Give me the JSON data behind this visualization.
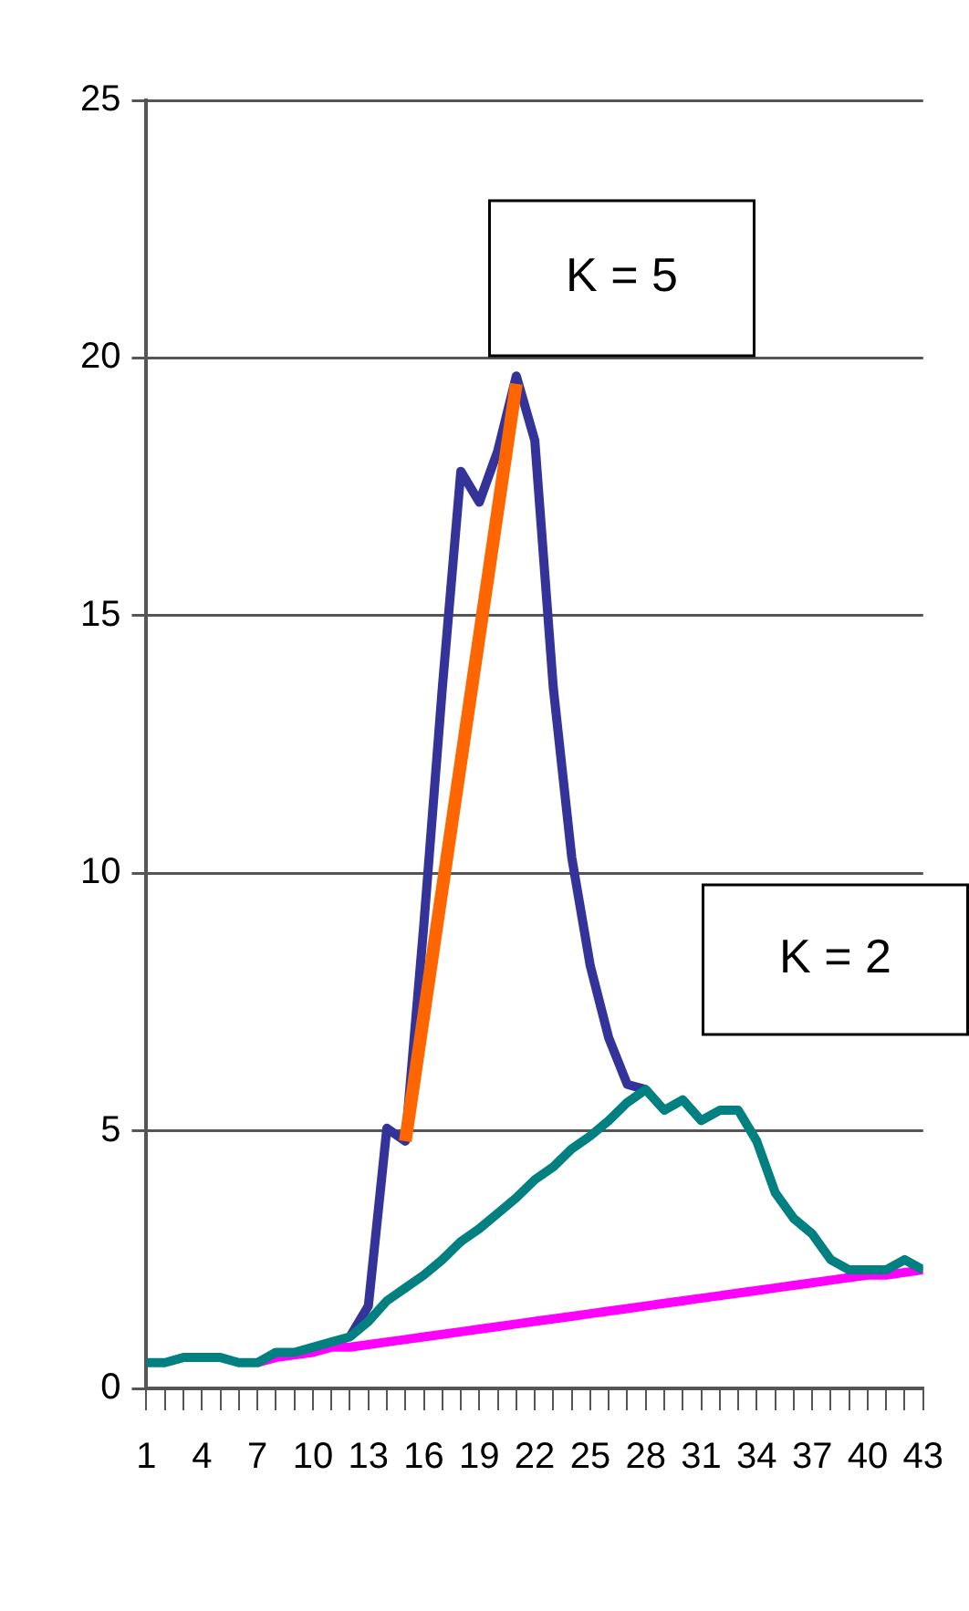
{
  "chart_data": {
    "type": "line",
    "x": [
      1,
      2,
      3,
      4,
      5,
      6,
      7,
      8,
      9,
      10,
      11,
      12,
      13,
      14,
      15,
      16,
      17,
      18,
      19,
      20,
      21,
      22,
      23,
      24,
      25,
      26,
      27,
      28,
      29,
      30,
      31,
      32,
      33,
      34,
      35,
      36,
      37,
      38,
      39,
      40,
      41,
      42,
      43
    ],
    "xlim": [
      1,
      43
    ],
    "xticks": [
      1,
      {
        "value": 2,
        "label": null
      },
      {
        "value": 3,
        "label": null
      },
      4,
      {
        "value": 5,
        "label": null
      },
      {
        "value": 6,
        "label": null
      },
      7,
      {
        "value": 8,
        "label": null
      },
      {
        "value": 9,
        "label": null
      },
      10,
      {
        "value": 11,
        "label": null
      },
      {
        "value": 12,
        "label": null
      },
      13,
      {
        "value": 14,
        "label": null
      },
      {
        "value": 15,
        "label": null
      },
      16,
      {
        "value": 17,
        "label": null
      },
      {
        "value": 18,
        "label": null
      },
      19,
      {
        "value": 20,
        "label": null
      },
      {
        "value": 21,
        "label": null
      },
      22,
      {
        "value": 23,
        "label": null
      },
      {
        "value": 24,
        "label": null
      },
      25,
      {
        "value": 26,
        "label": null
      },
      {
        "value": 27,
        "label": null
      },
      28,
      {
        "value": 29,
        "label": null
      },
      {
        "value": 30,
        "label": null
      },
      31,
      {
        "value": 32,
        "label": null
      },
      {
        "value": 33,
        "label": null
      },
      34,
      {
        "value": 35,
        "label": null
      },
      {
        "value": 36,
        "label": null
      },
      37,
      {
        "value": 38,
        "label": null
      },
      {
        "value": 39,
        "label": null
      },
      40,
      {
        "value": 41,
        "label": null
      },
      {
        "value": 42,
        "label": null
      },
      43
    ],
    "ylim": [
      0,
      25
    ],
    "yticks": [
      0,
      5,
      10,
      15,
      20,
      25
    ],
    "grid": "y",
    "legend": false,
    "marker": "none",
    "line_style": "solid",
    "annotations": [
      "K = 5",
      "K = 2"
    ],
    "series": [
      {
        "color": "#333399",
        "values": [
          null,
          null,
          null,
          null,
          null,
          null,
          null,
          null,
          null,
          null,
          null,
          1.0,
          1.6,
          5.05,
          4.8,
          9.0,
          13.6,
          17.8,
          17.2,
          18.2,
          19.65,
          18.4,
          13.6,
          10.3,
          8.2,
          6.8,
          5.9,
          5.8,
          null,
          null,
          null,
          null,
          null,
          null,
          null,
          null,
          null,
          null,
          null,
          null,
          null,
          null,
          null
        ]
      },
      {
        "color": "#ff00ff",
        "values": [
          null,
          null,
          null,
          null,
          null,
          null,
          0.5,
          0.6,
          0.65,
          0.7,
          0.8,
          0.8,
          0.85,
          0.9,
          0.95,
          1.0,
          1.05,
          1.1,
          1.15,
          1.2,
          1.25,
          1.3,
          1.35,
          1.4,
          1.45,
          1.5,
          1.55,
          1.6,
          1.65,
          1.7,
          1.75,
          1.8,
          1.85,
          1.9,
          1.95,
          2.0,
          2.05,
          2.1,
          2.15,
          2.2,
          2.2,
          2.25,
          2.3
        ]
      },
      {
        "color": "#008080",
        "values": [
          0.5,
          0.5,
          0.6,
          0.6,
          0.6,
          0.5,
          0.5,
          0.7,
          0.7,
          0.8,
          0.9,
          1.0,
          1.3,
          1.7,
          1.95,
          2.2,
          2.5,
          2.85,
          3.1,
          3.4,
          3.7,
          4.05,
          4.3,
          4.65,
          4.9,
          5.2,
          5.55,
          5.8,
          5.4,
          5.6,
          5.2,
          5.4,
          5.4,
          4.8,
          3.8,
          3.3,
          3.0,
          2.5,
          2.3,
          2.3,
          2.3,
          2.5,
          2.3
        ]
      },
      {
        "type": "line",
        "color": "#ff6600",
        "x": [
          15,
          21
        ],
        "values": [
          4.8,
          19.5
        ]
      }
    ]
  }
}
